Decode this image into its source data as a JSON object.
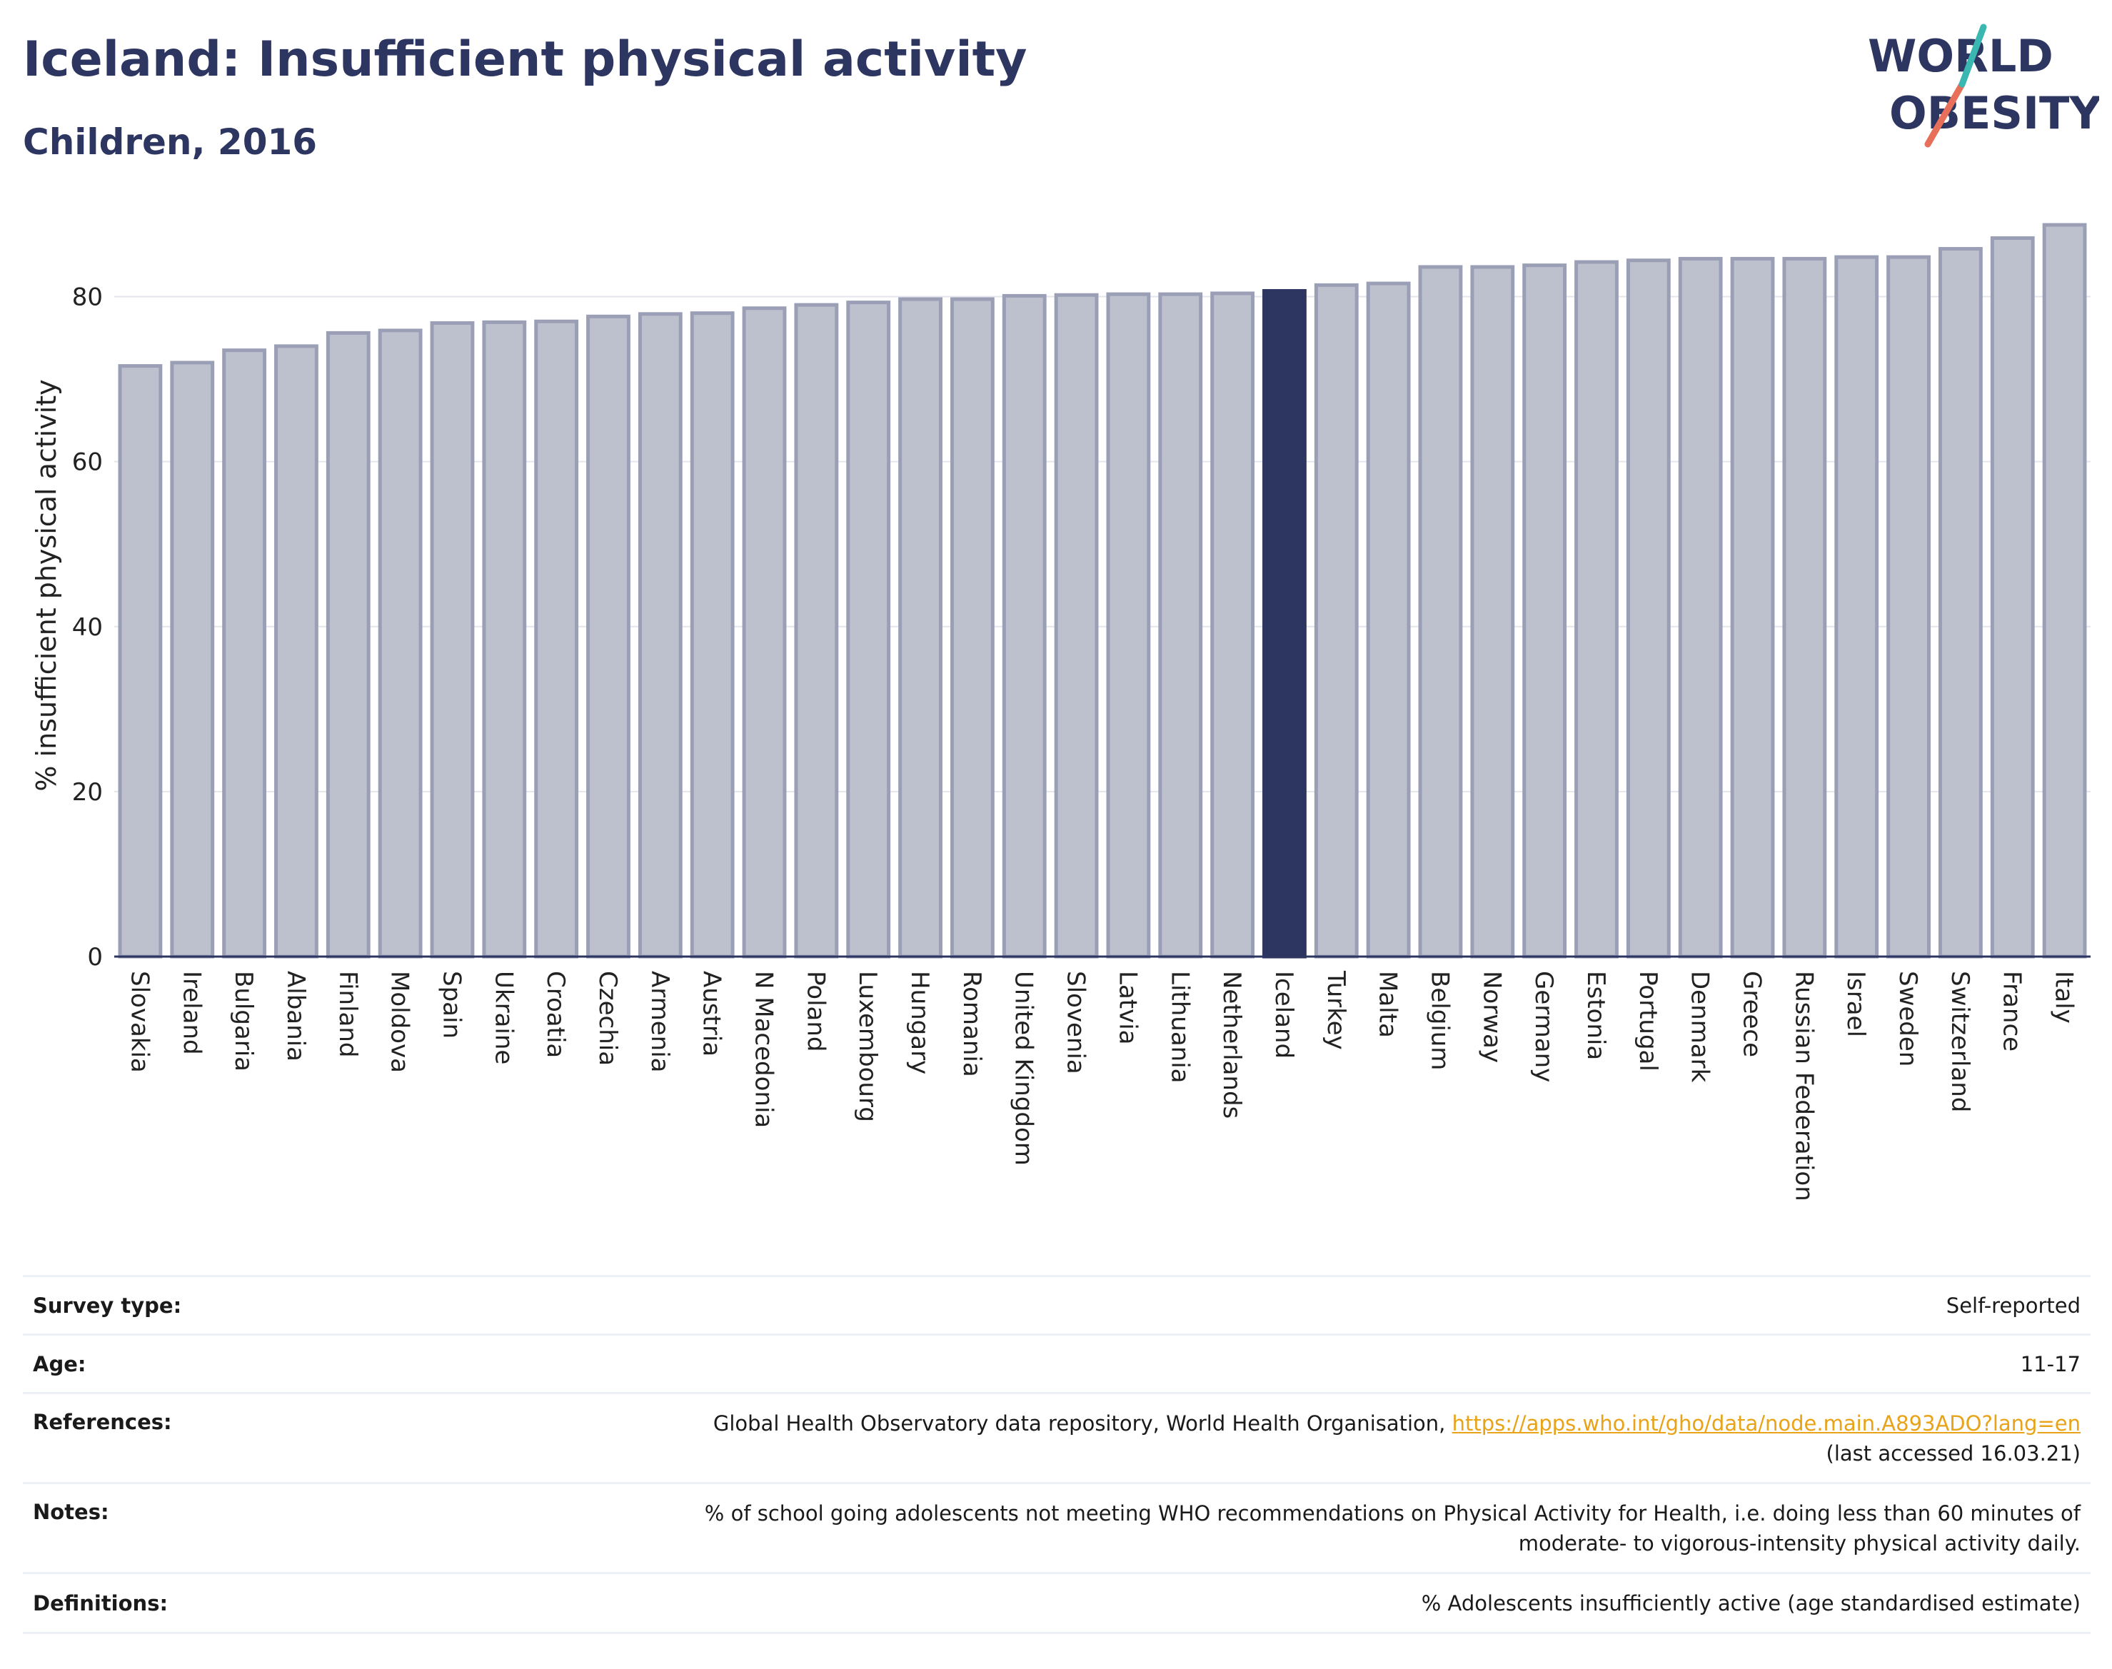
{
  "header": {
    "title": "Iceland: Insufficient physical activity",
    "subtitle": "Children, 2016"
  },
  "logo": {
    "line1": "WORLD",
    "line2": "OBESITY"
  },
  "chart_data": {
    "type": "bar",
    "ylabel": "% insufficient physical activity",
    "xlabel": "",
    "ylim": [
      0,
      90
    ],
    "yticks": [
      0,
      20,
      40,
      60,
      80
    ],
    "grid": true,
    "highlight": "Iceland",
    "colors": {
      "bar": "#bdc0cd",
      "bar_edge": "#9a9fb6",
      "highlight": "#2d3561"
    },
    "categories": [
      "Slovakia",
      "Ireland",
      "Bulgaria",
      "Albania",
      "Finland",
      "Moldova",
      "Spain",
      "Ukraine",
      "Croatia",
      "Czechia",
      "Armenia",
      "Austria",
      "N Macedonia",
      "Poland",
      "Luxembourg",
      "Hungary",
      "Romania",
      "United Kingdom",
      "Slovenia",
      "Latvia",
      "Lithuania",
      "Netherlands",
      "Iceland",
      "Turkey",
      "Malta",
      "Belgium",
      "Norway",
      "Germany",
      "Estonia",
      "Portugal",
      "Denmark",
      "Greece",
      "Russian Federation",
      "Israel",
      "Sweden",
      "Switzerland",
      "France",
      "Italy"
    ],
    "values": [
      71.6,
      72.0,
      73.5,
      74.0,
      75.6,
      75.9,
      76.8,
      76.9,
      77.0,
      77.6,
      77.9,
      78.0,
      78.6,
      79.0,
      79.3,
      79.7,
      79.7,
      80.1,
      80.2,
      80.3,
      80.3,
      80.4,
      80.7,
      81.4,
      81.6,
      83.6,
      83.6,
      83.8,
      84.2,
      84.4,
      84.6,
      84.6,
      84.6,
      84.8,
      84.8,
      85.8,
      87.1,
      88.7
    ]
  },
  "metadata": [
    {
      "key": "Survey type:",
      "value": "Self-reported"
    },
    {
      "key": "Age:",
      "value": "11-17"
    },
    {
      "key": "References:",
      "value": "Global Health Observatory data repository, World Health Organisation, ",
      "link": "https://apps.who.int/gho/data/node.main.A893ADO?lang=en",
      "value2": "(last accessed 16.03.21)"
    },
    {
      "key": "Notes:",
      "value": "% of school going adolescents not meeting WHO recommendations on Physical Activity for Health, i.e. doing less than 60 minutes of",
      "value2": "moderate- to vigorous-intensity physical activity daily."
    },
    {
      "key": "Definitions:",
      "value": "% Adolescents insufficiently active (age standardised estimate)"
    }
  ]
}
